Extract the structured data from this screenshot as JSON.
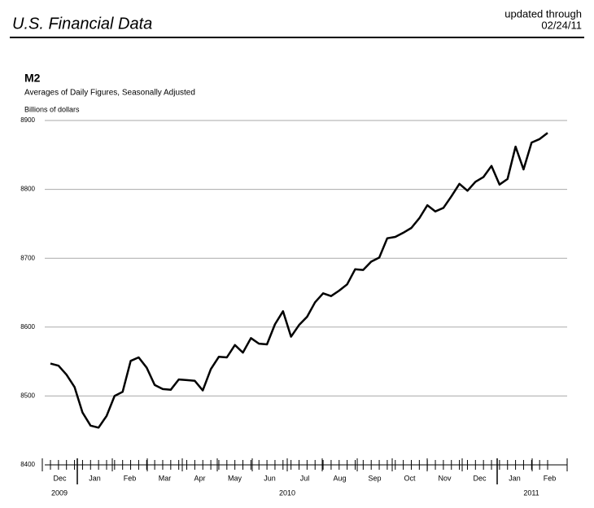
{
  "header": {
    "title": "U.S. Financial Data",
    "updated_label": "updated through",
    "updated_date": "02/24/11"
  },
  "chart_data": {
    "type": "line",
    "title": "M2",
    "subtitle": "Averages of Daily Figures, Seasonally Adjusted",
    "y_label": "Billions of dollars",
    "color": "#000000",
    "months": [
      "Dec",
      "Jan",
      "Feb",
      "Mar",
      "Apr",
      "May",
      "Jun",
      "Jul",
      "Aug",
      "Sep",
      "Oct",
      "Nov",
      "Dec",
      "Jan",
      "Feb"
    ],
    "years": [
      "2009",
      "2010",
      "2011"
    ],
    "values": [
      8547,
      8544,
      8531,
      8513,
      8476,
      8457,
      8454,
      8471,
      8500,
      8506,
      8551,
      8556,
      8541,
      8516,
      8510,
      8509,
      8524,
      8523,
      8522,
      8508,
      8539,
      8557,
      8556,
      8574,
      8563,
      8584,
      8576,
      8575,
      8604,
      8623,
      8586,
      8603,
      8615,
      8636,
      8649,
      8645,
      8653,
      8662,
      8684,
      8683,
      8695,
      8701,
      8729,
      8731,
      8737,
      8744,
      8758,
      8777,
      8768,
      8773,
      8790,
      8808,
      8798,
      8811,
      8818,
      8834,
      8807,
      8815,
      8862,
      8829,
      8868,
      8873,
      8882
    ],
    "ylim": [
      8400,
      8900
    ],
    "yticks": [
      8400,
      8500,
      8600,
      8700,
      8800,
      8900
    ],
    "grid": true
  }
}
